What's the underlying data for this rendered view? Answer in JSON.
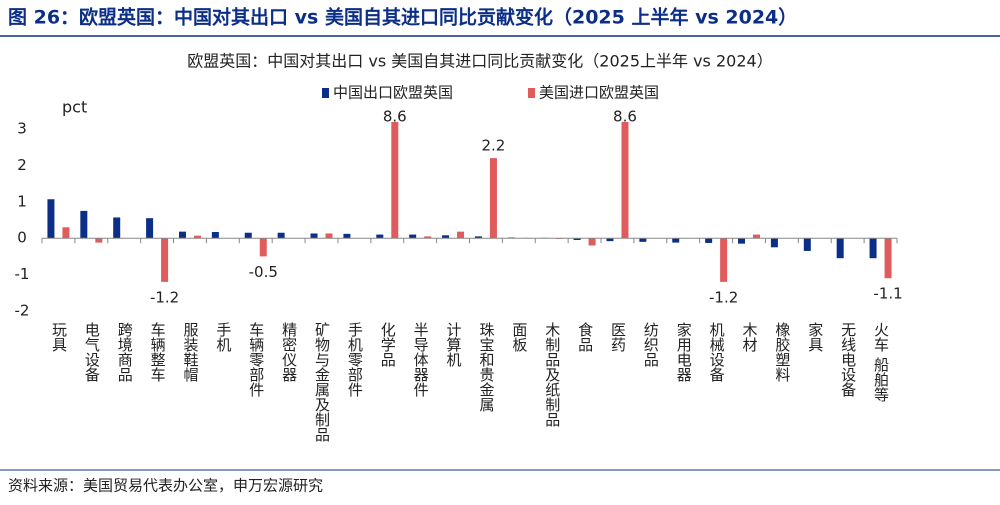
{
  "chart_data": {
    "type": "bar",
    "figure_title": "图 26：欧盟英国：中国对其出口  vs  美国自其进口同比贡献变化（2025 上半年  vs 2024）",
    "title": "欧盟英国：中国对其出口 vs 美国自其进口同比贡献变化（2025上半年 vs 2024）",
    "ylabel": "pct",
    "categories": [
      "玩具",
      "电气设备",
      "跨境商品",
      "车辆整车",
      "服装鞋帽",
      "手机",
      "车辆零部件",
      "精密仪器",
      "矿物与金属及制品",
      "手机零部件",
      "化学品",
      "半导体器件",
      "计算机",
      "珠宝和贵金属",
      "面板",
      "木制品及纸制品",
      "食品",
      "医药",
      "纺织品",
      "家用电器",
      "机械设备",
      "木材",
      "橡胶塑料",
      "家具",
      "无线电设备",
      "火车 船舶等"
    ],
    "series": [
      {
        "name": "中国出口欧盟英国",
        "color": "#0b2f86",
        "values": [
          1.07,
          0.75,
          0.57,
          0.55,
          0.18,
          0.17,
          0.15,
          0.15,
          0.13,
          0.12,
          0.1,
          0.1,
          0.08,
          0.05,
          0.02,
          0.01,
          -0.05,
          -0.08,
          -0.1,
          -0.12,
          -0.13,
          -0.15,
          -0.25,
          -0.35,
          -0.55,
          -0.55
        ],
        "value_labels": [
          null,
          null,
          null,
          null,
          null,
          null,
          null,
          null,
          null,
          null,
          null,
          null,
          null,
          null,
          null,
          null,
          null,
          null,
          null,
          null,
          null,
          null,
          null,
          null,
          null,
          null
        ]
      },
      {
        "name": "美国进口欧盟英国",
        "color": "#e05b5b",
        "values": [
          0.3,
          -0.12,
          0,
          -1.2,
          0.07,
          0,
          -0.5,
          0,
          0.13,
          0,
          8.6,
          0.05,
          0.18,
          2.2,
          0.01,
          -0.02,
          -0.2,
          8.6,
          0,
          0,
          -1.2,
          0.1,
          0,
          0,
          0,
          -1.1
        ],
        "value_labels": [
          null,
          null,
          null,
          "-1.2",
          null,
          null,
          "-0.5",
          null,
          null,
          null,
          "8.6",
          null,
          null,
          "2.2",
          null,
          null,
          null,
          "8.6",
          null,
          null,
          "-1.2",
          null,
          null,
          null,
          null,
          "-1.1"
        ]
      }
    ],
    "ylim": [
      -2,
      3
    ],
    "yticks": [
      -2,
      -1,
      0,
      1,
      2,
      3
    ],
    "grid": false,
    "legend": "top",
    "source": "资料来源：美国贸易代表办公室，申万宏源研究"
  }
}
